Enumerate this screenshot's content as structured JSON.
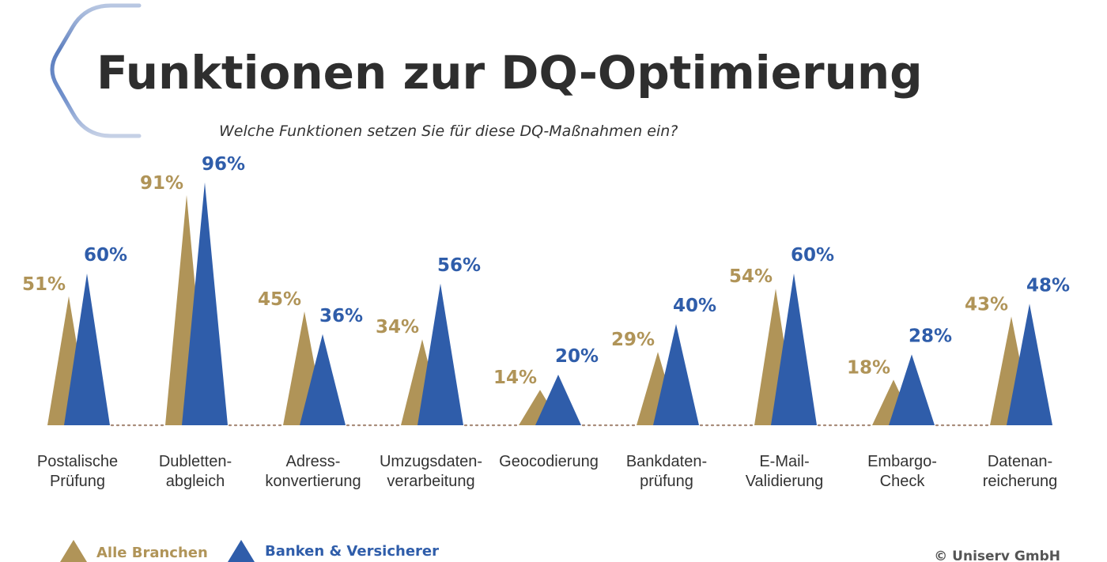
{
  "colors": {
    "gold": "#b09458",
    "blue": "#2f5daa",
    "baseline": "#a88c7a",
    "title": "#2e2e2e"
  },
  "chart_data": {
    "type": "bar",
    "title": "Funktionen zur DQ-Optimierung",
    "subtitle": "Welche Funktionen setzen Sie für diese DQ-Maßnahmen ein?",
    "categories": [
      [
        "Postalische",
        "Prüfung"
      ],
      [
        "Dubletten-",
        "abgleich"
      ],
      [
        "Adress-",
        "konvertierung"
      ],
      [
        "Umzugsdaten-",
        "verarbeitung"
      ],
      [
        "Geocodierung"
      ],
      [
        "Bankdaten-",
        "prüfung"
      ],
      [
        "E-Mail-",
        "Validierung"
      ],
      [
        "Embargo-",
        "Check"
      ],
      [
        "Datenan-",
        "reicherung"
      ]
    ],
    "series": [
      {
        "name": "Alle Branchen",
        "color": "#b09458",
        "values": [
          51,
          91,
          45,
          34,
          14,
          29,
          54,
          18,
          43
        ],
        "labels": [
          "51%",
          "91%",
          "45%",
          "34%",
          "14%",
          "29%",
          "54%",
          "18%",
          "43%"
        ]
      },
      {
        "name": "Banken & Versicherer",
        "color": "#2f5daa",
        "values": [
          60,
          96,
          36,
          56,
          20,
          40,
          60,
          28,
          48
        ],
        "labels": [
          "60%",
          "96%",
          "36%",
          "56%",
          "20%",
          "40%",
          "60%",
          "28%",
          "48%"
        ]
      }
    ],
    "ylim": [
      0,
      100
    ],
    "legend": "bottom-left",
    "grid": false
  },
  "source": "© Uniserv GmbH"
}
